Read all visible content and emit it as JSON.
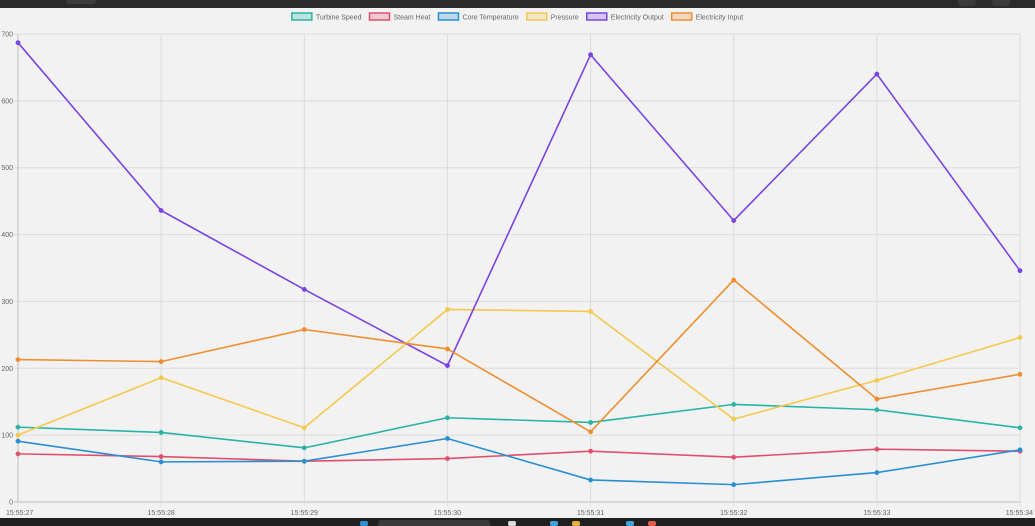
{
  "chart_data": {
    "type": "line",
    "title": "",
    "xlabel": "",
    "ylabel": "",
    "ylim": [
      0,
      700
    ],
    "yticks": [
      0,
      100,
      200,
      300,
      400,
      500,
      600,
      700
    ],
    "grid": true,
    "legend_position": "top",
    "categories": [
      "15:55:27",
      "15:55:28",
      "15:55:29",
      "15:55:30",
      "15:55:31",
      "15:55:32",
      "15:55:33",
      "15:55:34"
    ],
    "series": [
      {
        "name": "Turbine Speed",
        "color": "#2ab3a6",
        "values": [
          112,
          104,
          81,
          126,
          119,
          146,
          138,
          111
        ]
      },
      {
        "name": "Steam Heat",
        "color": "#e0506e",
        "values": [
          72,
          68,
          61,
          65,
          76,
          67,
          79,
          76
        ]
      },
      {
        "name": "Core Temperature",
        "color": "#2a8fd1",
        "values": [
          91,
          60,
          61,
          95,
          33,
          26,
          44,
          78
        ]
      },
      {
        "name": "Pressure",
        "color": "#f3c94f",
        "values": [
          100,
          186,
          111,
          288,
          285,
          124,
          182,
          246
        ]
      },
      {
        "name": "Electricity Output",
        "color": "#7b44e0",
        "values": [
          687,
          436,
          318,
          204,
          669,
          421,
          640,
          346
        ]
      },
      {
        "name": "Electricity Input",
        "color": "#ef8e2f",
        "values": [
          213,
          210,
          258,
          229,
          105,
          332,
          154,
          191
        ]
      }
    ]
  }
}
